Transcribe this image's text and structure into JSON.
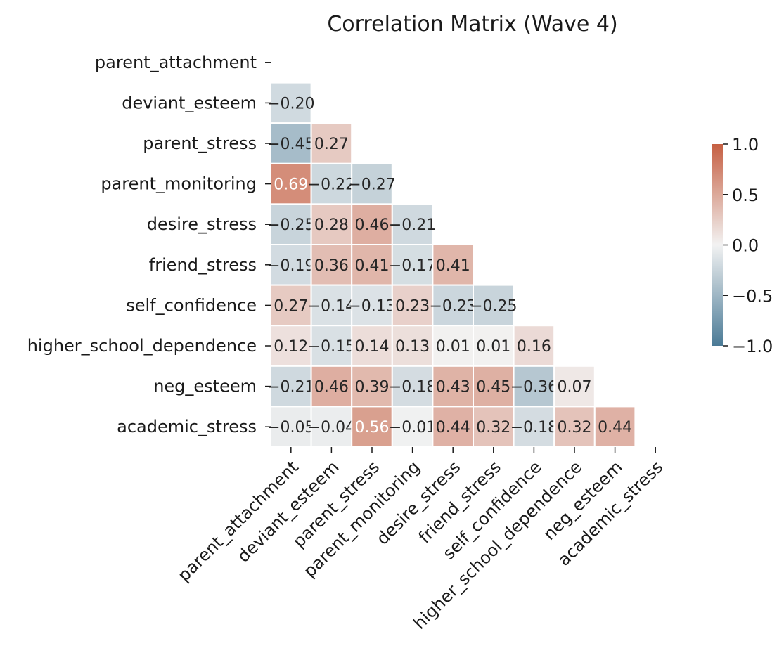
{
  "chart_data": {
    "type": "heatmap",
    "title": "Correlation Matrix (Wave 4)",
    "variables": [
      "parent_attachment",
      "deviant_esteem",
      "parent_stress",
      "parent_monitoring",
      "desire_stress",
      "friend_stress",
      "self_confidence",
      "higher_school_dependence",
      "neg_esteem",
      "academic_stress"
    ],
    "mask": "upper-triangle-including-diagonal",
    "rows": [
      [],
      [
        -0.2
      ],
      [
        -0.45,
        0.27
      ],
      [
        0.69,
        -0.22,
        -0.27
      ],
      [
        -0.25,
        0.28,
        0.46,
        -0.21
      ],
      [
        -0.19,
        0.36,
        0.41,
        -0.17,
        0.41
      ],
      [
        0.27,
        -0.14,
        -0.13,
        0.23,
        -0.23,
        -0.25
      ],
      [
        0.12,
        -0.15,
        0.14,
        0.13,
        0.01,
        0.01,
        0.16
      ],
      [
        -0.21,
        0.46,
        0.39,
        -0.18,
        0.43,
        0.45,
        -0.36,
        0.07
      ],
      [
        -0.05,
        -0.04,
        0.56,
        -0.01,
        0.44,
        0.32,
        -0.18,
        0.32,
        0.44
      ]
    ],
    "value_format": "2 decimals",
    "colormap": {
      "type": "diverging",
      "low_color": "#4a7a96",
      "mid_color": "#f2f2f2",
      "high_color": "#c65f42"
    },
    "vmin": -1.0,
    "vmax": 1.0,
    "colorbar": {
      "ticks": [
        1.0,
        0.5,
        0.0,
        -0.5,
        -1.0
      ],
      "tick_labels": [
        "1.0",
        "0.5",
        "0.0",
        "−0.5",
        "−1.0"
      ],
      "placement": "right"
    },
    "grid": false,
    "cell_border_color": "#ffffff"
  }
}
